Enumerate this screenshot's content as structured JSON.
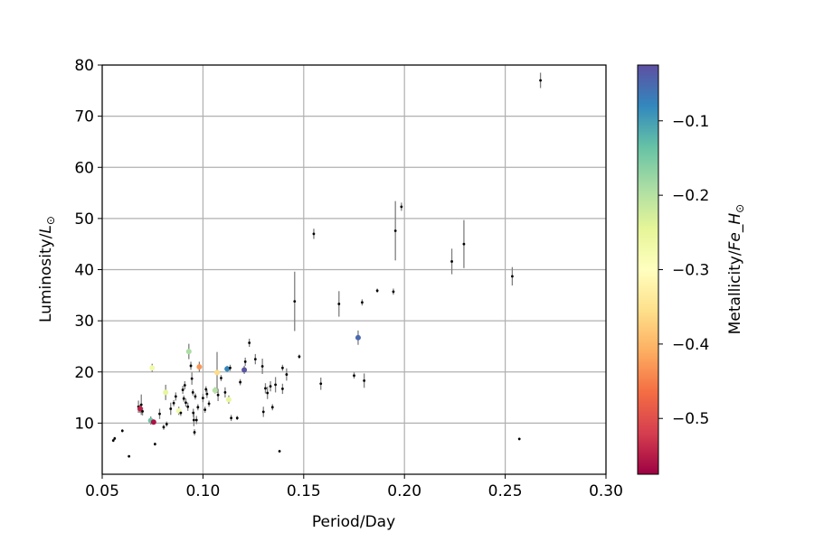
{
  "chart_data": {
    "type": "scatter",
    "title": "",
    "xlabel": "Period/Day",
    "ylabel": "Luminosity/",
    "ylabel_sym": "L",
    "ylabel_sub": "⊙",
    "xlim": [
      0.05,
      0.3
    ],
    "ylim": [
      0,
      80
    ],
    "xticks": [
      0.05,
      0.1,
      0.15,
      0.2,
      0.25,
      0.3
    ],
    "xtick_labels": [
      "0.05",
      "0.10",
      "0.15",
      "0.20",
      "0.25",
      "0.30"
    ],
    "yticks": [
      10,
      20,
      30,
      40,
      50,
      60,
      70,
      80
    ],
    "ytick_labels": [
      "10",
      "20",
      "30",
      "40",
      "50",
      "60",
      "70",
      "80"
    ],
    "grid": true,
    "colorbar": {
      "label_main": "Metallicity/",
      "label_fe": "Fe_H",
      "label_sub": "⊙",
      "range": [
        -0.575,
        -0.025
      ],
      "ticks": [
        -0.1,
        -0.2,
        -0.3,
        -0.4,
        -0.5
      ],
      "tick_labels": [
        "−0.1",
        "−0.2",
        "−0.3",
        "−0.4",
        "−0.5"
      ],
      "colormap": "Spectral"
    },
    "points": [
      {
        "x": 0.0555,
        "y": 6.6,
        "err": 0.3
      },
      {
        "x": 0.0562,
        "y": 7.0,
        "err": 0.3
      },
      {
        "x": 0.06,
        "y": 8.5,
        "err": 0.3
      },
      {
        "x": 0.0633,
        "y": 3.5,
        "err": 0.2
      },
      {
        "x": 0.068,
        "y": 13.2,
        "err": 1.2
      },
      {
        "x": 0.0688,
        "y": 12.8,
        "err": 0.8,
        "m": -0.545
      },
      {
        "x": 0.0694,
        "y": 13.6,
        "err": 2.0
      },
      {
        "x": 0.07,
        "y": 12.3,
        "err": 0.8
      },
      {
        "x": 0.0741,
        "y": 10.5,
        "err": 0.8,
        "m": -0.14
      },
      {
        "x": 0.0748,
        "y": 20.8,
        "err": 0.8,
        "m": -0.27
      },
      {
        "x": 0.0755,
        "y": 10.2,
        "err": 0.4,
        "m": -0.56
      },
      {
        "x": 0.0762,
        "y": 5.9,
        "err": 0.3
      },
      {
        "x": 0.0785,
        "y": 11.8,
        "err": 1.0
      },
      {
        "x": 0.0805,
        "y": 9.2,
        "err": 0.5
      },
      {
        "x": 0.082,
        "y": 9.8,
        "err": 0.5
      },
      {
        "x": 0.0815,
        "y": 16.0,
        "err": 1.5,
        "m": -0.25
      },
      {
        "x": 0.084,
        "y": 12.8,
        "err": 1.2
      },
      {
        "x": 0.0855,
        "y": 13.9,
        "err": 0.6
      },
      {
        "x": 0.0865,
        "y": 15.2,
        "err": 0.8
      },
      {
        "x": 0.088,
        "y": 12.4,
        "err": 0.8,
        "m": -0.27
      },
      {
        "x": 0.089,
        "y": 12.0,
        "err": 0.6
      },
      {
        "x": 0.09,
        "y": 16.5,
        "err": 0.8
      },
      {
        "x": 0.0905,
        "y": 14.8,
        "err": 0.6
      },
      {
        "x": 0.091,
        "y": 17.4,
        "err": 0.8
      },
      {
        "x": 0.0915,
        "y": 14.0,
        "err": 0.8
      },
      {
        "x": 0.0925,
        "y": 13.2,
        "err": 0.8
      },
      {
        "x": 0.093,
        "y": 24.0,
        "err": 1.5,
        "m": -0.19
      },
      {
        "x": 0.094,
        "y": 21.2,
        "err": 0.8
      },
      {
        "x": 0.0945,
        "y": 18.7,
        "err": 1.2
      },
      {
        "x": 0.095,
        "y": 16.0,
        "err": 0.6
      },
      {
        "x": 0.0952,
        "y": 12.0,
        "err": 0.8
      },
      {
        "x": 0.0955,
        "y": 10.6,
        "err": 1.2
      },
      {
        "x": 0.0958,
        "y": 8.2,
        "err": 0.6
      },
      {
        "x": 0.0962,
        "y": 15.2,
        "err": 0.6
      },
      {
        "x": 0.0968,
        "y": 10.6,
        "err": 0.8
      },
      {
        "x": 0.0975,
        "y": 13.1,
        "err": 0.6
      },
      {
        "x": 0.0982,
        "y": 21.0,
        "err": 1.0,
        "m": -0.43
      },
      {
        "x": 0.1,
        "y": 14.9,
        "err": 0.8
      },
      {
        "x": 0.101,
        "y": 12.6,
        "err": 0.6
      },
      {
        "x": 0.1015,
        "y": 16.6,
        "err": 0.6
      },
      {
        "x": 0.102,
        "y": 15.7,
        "err": 0.8
      },
      {
        "x": 0.103,
        "y": 13.8,
        "err": 0.6
      },
      {
        "x": 0.106,
        "y": 16.4,
        "err": 0.6,
        "m": -0.2
      },
      {
        "x": 0.107,
        "y": 19.9,
        "err": 4.0,
        "m": -0.36
      },
      {
        "x": 0.1075,
        "y": 15.5,
        "err": 1.2
      },
      {
        "x": 0.109,
        "y": 18.8,
        "err": 0.6
      },
      {
        "x": 0.111,
        "y": 16.0,
        "err": 1.0
      },
      {
        "x": 0.112,
        "y": 20.6,
        "err": 0.6,
        "m": -0.08
      },
      {
        "x": 0.1128,
        "y": 14.6,
        "err": 0.8,
        "m": -0.25
      },
      {
        "x": 0.1135,
        "y": 20.8,
        "err": 0.6
      },
      {
        "x": 0.114,
        "y": 11.0,
        "err": 0.6
      },
      {
        "x": 0.117,
        "y": 11.0,
        "err": 0.4
      },
      {
        "x": 0.1185,
        "y": 18.0,
        "err": 0.6
      },
      {
        "x": 0.1205,
        "y": 20.4,
        "err": 0.8,
        "m": -0.03
      },
      {
        "x": 0.121,
        "y": 22.0,
        "err": 0.8
      },
      {
        "x": 0.123,
        "y": 25.7,
        "err": 0.8
      },
      {
        "x": 0.126,
        "y": 22.5,
        "err": 1.0
      },
      {
        "x": 0.1295,
        "y": 21.1,
        "err": 1.5
      },
      {
        "x": 0.13,
        "y": 12.2,
        "err": 1.0
      },
      {
        "x": 0.131,
        "y": 16.8,
        "err": 1.0
      },
      {
        "x": 0.132,
        "y": 15.9,
        "err": 1.2
      },
      {
        "x": 0.1335,
        "y": 17.2,
        "err": 1.0
      },
      {
        "x": 0.1345,
        "y": 13.1,
        "err": 0.6
      },
      {
        "x": 0.136,
        "y": 17.5,
        "err": 1.5
      },
      {
        "x": 0.138,
        "y": 4.5,
        "err": 0.2
      },
      {
        "x": 0.1395,
        "y": 16.7,
        "err": 1.0
      },
      {
        "x": 0.1395,
        "y": 20.8,
        "err": 0.6
      },
      {
        "x": 0.1415,
        "y": 19.5,
        "err": 1.2
      },
      {
        "x": 0.1455,
        "y": 33.8,
        "err": 5.8
      },
      {
        "x": 0.1478,
        "y": 23.0,
        "err": 0.4
      },
      {
        "x": 0.155,
        "y": 47.0,
        "err": 1.0
      },
      {
        "x": 0.1585,
        "y": 17.7,
        "err": 1.2
      },
      {
        "x": 0.1675,
        "y": 33.3,
        "err": 2.5
      },
      {
        "x": 0.175,
        "y": 19.3,
        "err": 0.6
      },
      {
        "x": 0.177,
        "y": 26.7,
        "err": 1.4,
        "m": -0.05
      },
      {
        "x": 0.179,
        "y": 33.6,
        "err": 0.6
      },
      {
        "x": 0.18,
        "y": 18.3,
        "err": 1.4
      },
      {
        "x": 0.1865,
        "y": 35.9,
        "err": 0.4
      },
      {
        "x": 0.1945,
        "y": 35.7,
        "err": 0.6
      },
      {
        "x": 0.1955,
        "y": 47.6,
        "err": 5.8
      },
      {
        "x": 0.1985,
        "y": 52.3,
        "err": 0.8
      },
      {
        "x": 0.2235,
        "y": 41.6,
        "err": 2.5
      },
      {
        "x": 0.2295,
        "y": 45.0,
        "err": 4.7
      },
      {
        "x": 0.2535,
        "y": 38.7,
        "err": 1.8
      },
      {
        "x": 0.257,
        "y": 6.9,
        "err": 0.2
      },
      {
        "x": 0.2675,
        "y": 77.0,
        "err": 1.5
      }
    ]
  }
}
